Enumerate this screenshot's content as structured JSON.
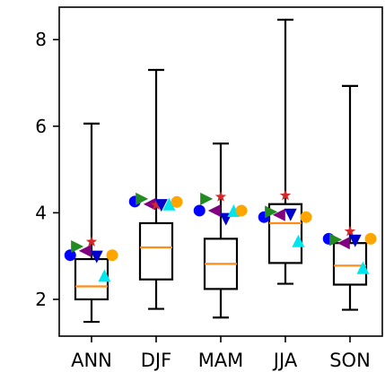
{
  "chart_data": {
    "type": "box",
    "categories": [
      "ANN",
      "DJF",
      "MAM",
      "JJA",
      "SON"
    ],
    "ylim": [
      1.15,
      8.75
    ],
    "yticks": [
      2,
      4,
      6,
      8
    ],
    "ytick_labels": [
      "2",
      "4",
      "6",
      "8"
    ],
    "grid": false,
    "boxes": [
      {
        "category": "ANN",
        "whislo": 1.48,
        "q1": 2.0,
        "med": 2.3,
        "q3": 2.93,
        "whishi": 6.06
      },
      {
        "category": "DJF",
        "whislo": 1.78,
        "q1": 2.46,
        "med": 3.2,
        "q3": 3.76,
        "whishi": 7.3
      },
      {
        "category": "MAM",
        "whislo": 1.58,
        "q1": 2.24,
        "med": 2.82,
        "q3": 3.4,
        "whishi": 5.6
      },
      {
        "category": "JJA",
        "whislo": 2.36,
        "q1": 2.84,
        "med": 3.76,
        "q3": 4.2,
        "whishi": 8.46
      },
      {
        "category": "SON",
        "whislo": 1.76,
        "q1": 2.34,
        "med": 2.78,
        "q3": 3.3,
        "whishi": 6.93
      }
    ],
    "marker_series": [
      {
        "marker": "circle",
        "color": "#0000ff",
        "offset": -0.33,
        "values": [
          3.02,
          4.26,
          4.05,
          3.9,
          3.4
        ]
      },
      {
        "marker": "triangle-right",
        "color": "#228b22",
        "offset": -0.22,
        "values": [
          3.22,
          4.32,
          4.32,
          4.02,
          3.38
        ]
      },
      {
        "marker": "triangle-left",
        "color": "#800080",
        "offset": -0.1,
        "values": [
          3.12,
          4.2,
          4.05,
          3.95,
          3.3
        ]
      },
      {
        "marker": "star",
        "color": "#d62728",
        "offset": 0.0,
        "values": [
          3.33,
          4.18,
          4.37,
          4.4,
          3.57
        ]
      },
      {
        "marker": "triangle-down",
        "color": "#0000cd",
        "offset": 0.08,
        "values": [
          2.98,
          4.17,
          3.85,
          3.95,
          3.35
        ]
      },
      {
        "marker": "triangle-up",
        "color": "#00e5ee",
        "offset": 0.2,
        "values": [
          2.55,
          4.2,
          4.05,
          3.35,
          2.73
        ]
      },
      {
        "marker": "circle",
        "color": "#ffa500",
        "offset": 0.32,
        "values": [
          3.02,
          4.25,
          4.05,
          3.9,
          3.4
        ]
      }
    ],
    "colors": {
      "median": "#ff8c1a",
      "box": "#000000"
    }
  }
}
